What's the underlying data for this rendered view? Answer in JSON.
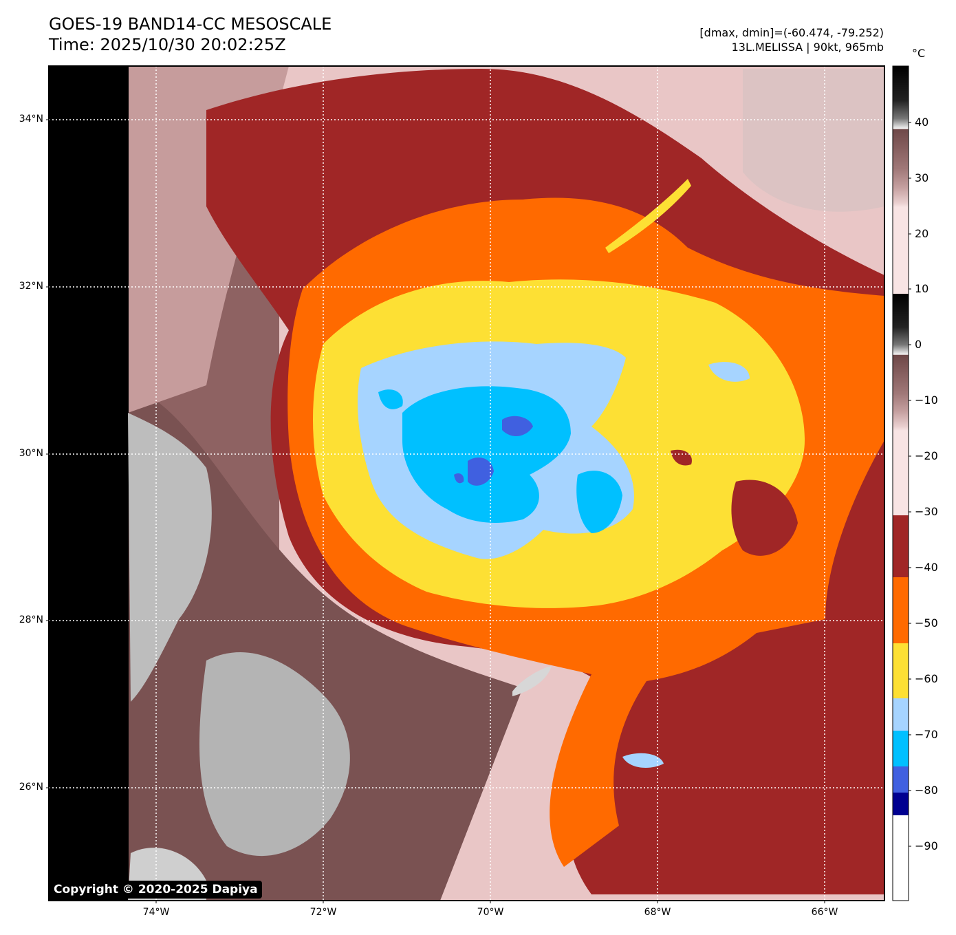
{
  "header": {
    "title_line1": "GOES-19 BAND14-CC MESOSCALE",
    "title_line2": "Time: 2025/10/30 20:02:25Z",
    "range_line": "[dmax, dmin]=(-60.474, -79.252)",
    "storm_line": "13L.MELISSA | 90kt, 965mb"
  },
  "map": {
    "lat_labels": [
      "34°N",
      "32°N",
      "30°N",
      "28°N",
      "26°N"
    ],
    "lon_labels": [
      "74°W",
      "72°W",
      "70°W",
      "68°W",
      "66°W"
    ],
    "copyright": "Copyright © 2020-2025 Dapiya"
  },
  "colorbar": {
    "unit": "°C",
    "ticks": [
      "40",
      "30",
      "20",
      "10",
      "0",
      "−10",
      "−20",
      "−30",
      "−40",
      "−50",
      "−60",
      "−70",
      "−80",
      "−90"
    ],
    "colors": {
      "warm_high": "#000000",
      "cold_band_-30_-40": "#a02626",
      "cold_band_-40_-52": "#ff6a00",
      "cold_band_-52_-62": "#fde034",
      "cold_band_-62_-68": "#a6d4ff",
      "cold_band_-68_-77": "#00c0ff",
      "cold_band_-77_-81": "#4060e0",
      "cold_band_-81_-85": "#000090",
      "coldest": "#ffffff"
    }
  }
}
